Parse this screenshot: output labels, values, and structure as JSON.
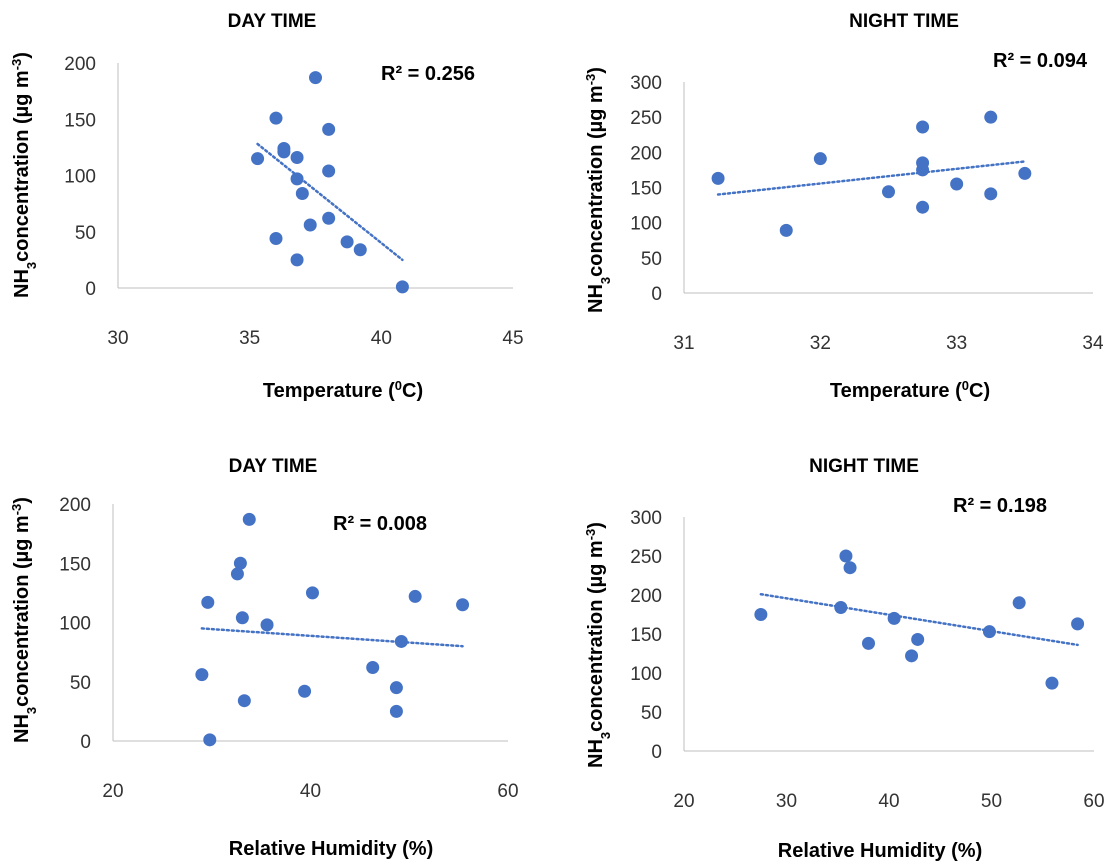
{
  "chart_data": [
    {
      "type": "scatter",
      "title": "DAY TIME",
      "xlabel_main": "Temperature (",
      "xlabel_sup": "0",
      "xlabel_tail": "C)",
      "ylabel_pre": "NH",
      "ylabel_sub": "3",
      "ylabel_mid": "concentration (µg m",
      "ylabel_sup": "-3",
      "ylabel_tail": ")",
      "xlim": [
        30,
        45
      ],
      "ylim": [
        0,
        200
      ],
      "xticks": [
        "30",
        "35",
        "40",
        "45"
      ],
      "xtick_values": [
        30,
        35,
        40,
        45
      ],
      "yticks": [
        "0",
        "50",
        "100",
        "150",
        "200"
      ],
      "ytick_values": [
        0,
        50,
        100,
        150,
        200
      ],
      "r2_label": "R² = 0.256",
      "x": [
        35.3,
        36.0,
        36.0,
        36.3,
        36.3,
        36.8,
        36.8,
        36.8,
        37.0,
        37.3,
        37.5,
        38.0,
        38.0,
        38.0,
        38.7,
        39.2,
        40.8
      ],
      "y": [
        115,
        151,
        44,
        124,
        121,
        116,
        97,
        25,
        84,
        56,
        187,
        141,
        104,
        62,
        41,
        34,
        1
      ],
      "trendline": {
        "x": [
          35.3,
          40.8
        ],
        "y": [
          128,
          25
        ],
        "style": "dotted"
      },
      "marker_color": "#4472C4"
    },
    {
      "type": "scatter",
      "title": "NIGHT TIME",
      "xlabel_main": "Temperature (",
      "xlabel_sup": "0",
      "xlabel_tail": "C)",
      "ylabel_pre": "NH",
      "ylabel_sub": "3",
      "ylabel_mid": "concentration (µg m",
      "ylabel_sup": "-3",
      "ylabel_tail": ")",
      "xlim": [
        31,
        34
      ],
      "ylim": [
        0,
        300
      ],
      "xticks": [
        "31",
        "32",
        "33",
        "34"
      ],
      "xtick_values": [
        31,
        32,
        33,
        34
      ],
      "yticks": [
        "0",
        "50",
        "100",
        "150",
        "200",
        "250",
        "300"
      ],
      "ytick_values": [
        0,
        50,
        100,
        150,
        200,
        250,
        300
      ],
      "r2_label": "R² = 0.094",
      "x": [
        31.25,
        31.75,
        32.0,
        32.5,
        32.75,
        32.75,
        32.75,
        32.75,
        33.0,
        33.25,
        33.25,
        33.5
      ],
      "y": [
        163,
        89,
        191,
        144,
        236,
        185,
        175,
        122,
        155,
        250,
        141,
        170
      ],
      "trendline": {
        "x": [
          31.25,
          33.5
        ],
        "y": [
          140,
          187
        ],
        "style": "dotted"
      },
      "marker_color": "#4472C4"
    },
    {
      "type": "scatter",
      "title": "DAY TIME",
      "xlabel_main": "Relative Humidity (%)",
      "xlabel_sup": "",
      "xlabel_tail": "",
      "ylabel_pre": "NH",
      "ylabel_sub": "3",
      "ylabel_mid": "concentration (µg m",
      "ylabel_sup": "-3",
      "ylabel_tail": ")",
      "xlim": [
        20,
        60
      ],
      "ylim": [
        0,
        200
      ],
      "xticks": [
        "20",
        "40",
        "60"
      ],
      "xtick_values": [
        20,
        40,
        60
      ],
      "yticks": [
        "0",
        "50",
        "100",
        "150",
        "200"
      ],
      "ytick_values": [
        0,
        50,
        100,
        150,
        200
      ],
      "r2_label": "R² = 0.008",
      "x": [
        29.0,
        29.6,
        29.8,
        32.6,
        32.9,
        33.1,
        33.3,
        33.8,
        35.6,
        39.4,
        40.2,
        46.3,
        48.7,
        48.7,
        49.2,
        50.6,
        55.4
      ],
      "y": [
        56,
        117,
        1,
        141,
        150,
        104,
        34,
        187,
        98,
        42,
        125,
        62,
        45,
        25,
        84,
        122,
        115
      ],
      "trendline": {
        "x": [
          29.0,
          55.4
        ],
        "y": [
          95,
          80
        ],
        "style": "dotted"
      },
      "marker_color": "#4472C4"
    },
    {
      "type": "scatter",
      "title": "NIGHT TIME",
      "xlabel_main": "Relative Humidity (%)",
      "xlabel_sup": "",
      "xlabel_tail": "",
      "ylabel_pre": "NH",
      "ylabel_sub": "3",
      "ylabel_mid": "concentration (µg m",
      "ylabel_sup": "-3",
      "ylabel_tail": ")",
      "xlim": [
        20,
        60
      ],
      "ylim": [
        0,
        300
      ],
      "xticks": [
        "20",
        "30",
        "40",
        "50",
        "60"
      ],
      "xtick_values": [
        20,
        30,
        40,
        50,
        60
      ],
      "yticks": [
        "0",
        "50",
        "100",
        "150",
        "200",
        "250",
        "300"
      ],
      "ytick_values": [
        0,
        50,
        100,
        150,
        200,
        250,
        300
      ],
      "r2_label": "R² = 0.198",
      "x": [
        27.5,
        35.3,
        35.8,
        36.2,
        38.0,
        40.5,
        42.2,
        42.8,
        49.8,
        52.7,
        55.9,
        58.4
      ],
      "y": [
        175,
        184,
        250,
        235,
        138,
        170,
        122,
        143,
        153,
        190,
        87,
        163
      ],
      "trendline": {
        "x": [
          27.5,
          58.4
        ],
        "y": [
          201,
          136
        ],
        "style": "dotted"
      },
      "marker_color": "#4472C4"
    }
  ]
}
